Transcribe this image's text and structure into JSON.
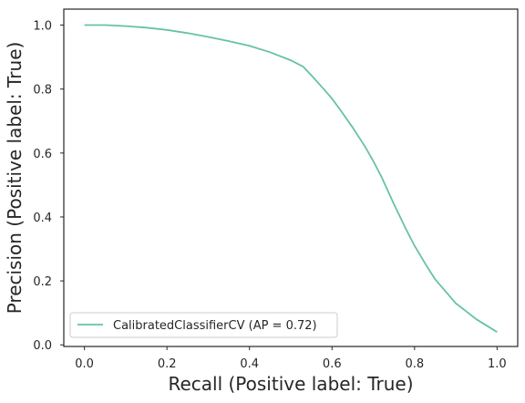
{
  "chart_data": {
    "type": "line",
    "title": "",
    "xlabel": "Recall (Positive label: True)",
    "ylabel": "Precision (Positive label: True)",
    "xlim": [
      -0.05,
      1.05
    ],
    "ylim": [
      -0.005,
      1.05
    ],
    "xticks": [
      "0.0",
      "0.2",
      "0.4",
      "0.6",
      "0.8",
      "1.0"
    ],
    "yticks": [
      "0.0",
      "0.2",
      "0.4",
      "0.6",
      "0.8",
      "1.0"
    ],
    "grid": false,
    "legend_position": "lower-left",
    "series": [
      {
        "name": "CalibratedClassifierCV (AP = 0.72)",
        "color": "#66c2a5",
        "x": [
          0.0,
          0.05,
          0.1,
          0.15,
          0.2,
          0.25,
          0.3,
          0.35,
          0.4,
          0.45,
          0.5,
          0.53,
          0.55,
          0.58,
          0.6,
          0.62,
          0.65,
          0.68,
          0.7,
          0.72,
          0.75,
          0.78,
          0.8,
          0.83,
          0.85,
          0.88,
          0.9,
          0.93,
          0.95,
          0.97,
          1.0
        ],
        "y": [
          1.0,
          1.0,
          0.997,
          0.992,
          0.985,
          0.975,
          0.963,
          0.95,
          0.935,
          0.915,
          0.89,
          0.87,
          0.843,
          0.8,
          0.77,
          0.735,
          0.68,
          0.62,
          0.575,
          0.525,
          0.44,
          0.36,
          0.31,
          0.245,
          0.205,
          0.16,
          0.13,
          0.1,
          0.08,
          0.064,
          0.04
        ]
      }
    ]
  }
}
